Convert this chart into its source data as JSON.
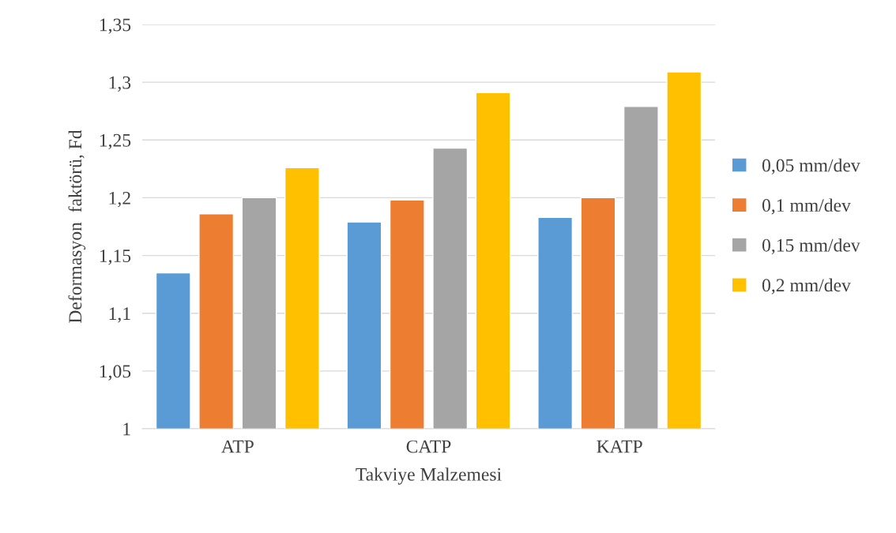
{
  "chart_data": {
    "type": "bar",
    "xlabel": "Takviye Malzemesi",
    "ylabel": "Deformasyon  faktörü, Fd",
    "categories": [
      "ATP",
      "CATP",
      "KATP"
    ],
    "series": [
      {
        "name": "0,05 mm/dev",
        "color": "#5b9bd5",
        "values": [
          1.135,
          1.179,
          1.183
        ]
      },
      {
        "name": "0,1 mm/dev",
        "color": "#ed7d31",
        "values": [
          1.186,
          1.198,
          1.2
        ]
      },
      {
        "name": "0,15 mm/dev",
        "color": "#a5a5a5",
        "values": [
          1.2,
          1.243,
          1.279
        ]
      },
      {
        "name": "0,2 mm/dev",
        "color": "#ffc000",
        "values": [
          1.226,
          1.291,
          1.309
        ]
      }
    ],
    "ylim": [
      1,
      1.35
    ],
    "yticks": [
      1,
      {
        "value": 1.05,
        "label": "1,05"
      },
      {
        "value": 1.1,
        "label": "1,1"
      },
      {
        "value": 1.15,
        "label": "1,15"
      },
      {
        "value": 1.2,
        "label": "1,2"
      },
      {
        "value": 1.25,
        "label": "1,25"
      },
      {
        "value": 1.3,
        "label": "1,3"
      },
      {
        "value": 1.35,
        "label": "1,35"
      }
    ],
    "grid": "y",
    "legend": "right"
  }
}
